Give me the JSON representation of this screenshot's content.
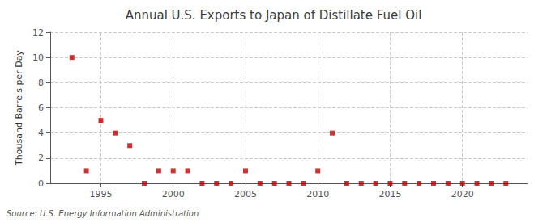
{
  "chart_data": {
    "type": "scatter",
    "title": "Annual U.S. Exports to Japan of Distillate Fuel Oil",
    "ylabel": "Thousand Barrels per Day",
    "annotations": [
      "Source: U.S. Energy Information Administration"
    ],
    "x": [
      1993,
      1994,
      1995,
      1996,
      1997,
      1998,
      1999,
      2000,
      2001,
      2002,
      2003,
      2004,
      2005,
      2006,
      2007,
      2008,
      2009,
      2010,
      2011,
      2012,
      2013,
      2014,
      2015,
      2016,
      2017,
      2018,
      2019,
      2020,
      2021,
      2022,
      2023
    ],
    "values": [
      10,
      1,
      5,
      4,
      3,
      0,
      1,
      1,
      1,
      0,
      0,
      0,
      1,
      0,
      0,
      0,
      0,
      1,
      4,
      0,
      0,
      0,
      0,
      0,
      0,
      0,
      0,
      0,
      0,
      0,
      0
    ],
    "color": "#bb0000",
    "marker": "square",
    "xlim": [
      1991.5,
      2024.5
    ],
    "xticks": [
      1995,
      2000,
      2005,
      2010,
      2015,
      2020
    ],
    "ylim": [
      0,
      12
    ],
    "yticks": [
      0,
      2,
      4,
      6,
      8,
      10,
      12
    ],
    "grid": true
  }
}
